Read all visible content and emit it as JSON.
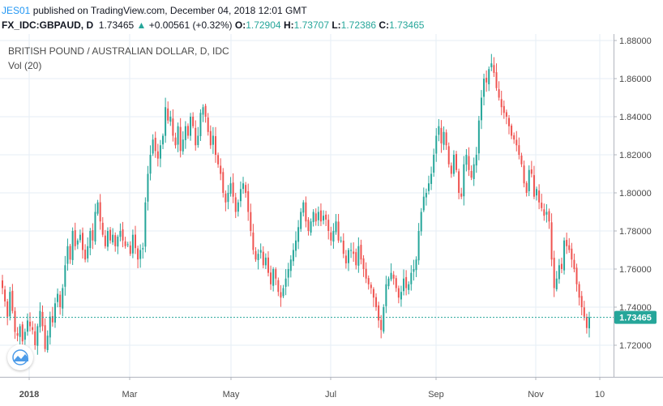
{
  "header": {
    "user": "JES01",
    "published_text": " published on TradingView.com, December 04, 2018 12:01 GMT",
    "symbol": "FX_IDC:GBPAUD, D",
    "last": "1.73465",
    "change_arrow": "▲",
    "change": "+0.00561 (+0.32%)",
    "o_label": "O:",
    "o_value": "1.72904",
    "h_label": "H:",
    "h_value": "1.73707",
    "l_label": "L:",
    "l_value": "1.72386",
    "c_label": "C:",
    "c_value": "1.73465"
  },
  "chart_title": "BRITISH POUND / AUSTRALIAN DOLLAR, D, IDC",
  "indicator": "Vol (20)",
  "icons": {
    "logo": "tradingview-logo-icon"
  },
  "colors": {
    "up": "#26a69a",
    "down": "#ef5350",
    "grid": "#e6eef5",
    "price_label_bg": "#26a69a"
  },
  "chart_data": {
    "type": "candlestick",
    "title": "BRITISH POUND / AUSTRALIAN DOLLAR, D, IDC",
    "ylim": [
      1.705,
      1.885
    ],
    "y_ticks": [
      "1.88000",
      "1.86000",
      "1.84000",
      "1.82000",
      "1.80000",
      "1.78000",
      "1.76000",
      "1.74000",
      "1.72000"
    ],
    "x_ticks": [
      "2018",
      "Mar",
      "May",
      "Jul",
      "Sep",
      "Nov",
      "10"
    ],
    "current_price": "1.73465",
    "grid": true,
    "close_series": [
      1.75,
      1.743,
      1.735,
      1.748,
      1.738,
      1.727,
      1.725,
      1.73,
      1.722,
      1.727,
      1.733,
      1.73,
      1.728,
      1.72,
      1.73,
      1.738,
      1.73,
      1.718,
      1.725,
      1.735,
      1.732,
      1.742,
      1.747,
      1.74,
      1.75,
      1.762,
      1.772,
      1.765,
      1.78,
      1.772,
      1.775,
      1.778,
      1.77,
      1.765,
      1.772,
      1.78,
      1.775,
      1.79,
      1.795,
      1.785,
      1.778,
      1.772,
      1.78,
      1.775,
      1.778,
      1.772,
      1.777,
      1.78,
      1.775,
      1.772,
      1.773,
      1.768,
      1.778,
      1.771,
      1.765,
      1.77,
      1.771,
      1.795,
      1.81,
      1.82,
      1.828,
      1.822,
      1.818,
      1.825,
      1.83,
      1.845,
      1.838,
      1.84,
      1.83,
      1.825,
      1.835,
      1.822,
      1.828,
      1.835,
      1.83,
      1.84,
      1.835,
      1.825,
      1.83,
      1.842,
      1.845,
      1.84,
      1.832,
      1.825,
      1.83,
      1.82,
      1.815,
      1.81,
      1.8,
      1.795,
      1.8,
      1.805,
      1.798,
      1.79,
      1.795,
      1.802,
      1.805,
      1.8,
      1.79,
      1.78,
      1.77,
      1.765,
      1.768,
      1.77,
      1.762,
      1.766,
      1.758,
      1.752,
      1.76,
      1.755,
      1.748,
      1.745,
      1.75,
      1.755,
      1.76,
      1.765,
      1.77,
      1.775,
      1.782,
      1.79,
      1.795,
      1.785,
      1.78,
      1.785,
      1.79,
      1.785,
      1.79,
      1.785,
      1.788,
      1.786,
      1.78,
      1.775,
      1.78,
      1.785,
      1.775,
      1.775,
      1.768,
      1.763,
      1.77,
      1.77,
      1.768,
      1.762,
      1.772,
      1.765,
      1.76,
      1.755,
      1.752,
      1.75,
      1.745,
      1.74,
      1.733,
      1.728,
      1.74,
      1.752,
      1.755,
      1.758,
      1.755,
      1.75,
      1.745,
      1.748,
      1.755,
      1.75,
      1.752,
      1.758,
      1.76,
      1.765,
      1.78,
      1.79,
      1.798,
      1.8,
      1.805,
      1.81,
      1.82,
      1.83,
      1.835,
      1.826,
      1.832,
      1.825,
      1.815,
      1.81,
      1.82,
      1.812,
      1.8,
      1.798,
      1.815,
      1.82,
      1.812,
      1.808,
      1.815,
      1.82,
      1.838,
      1.85,
      1.86,
      1.858,
      1.865,
      1.868,
      1.863,
      1.855,
      1.85,
      1.845,
      1.842,
      1.84,
      1.835,
      1.83,
      1.828,
      1.825,
      1.82,
      1.815,
      1.805,
      1.8,
      1.812,
      1.81,
      1.798,
      1.802,
      1.795,
      1.792,
      1.788,
      1.79,
      1.785,
      1.765,
      1.75,
      1.755,
      1.762,
      1.76,
      1.775,
      1.772,
      1.77,
      1.765,
      1.76,
      1.752,
      1.745,
      1.74,
      1.735,
      1.72905,
      1.73465
    ]
  }
}
